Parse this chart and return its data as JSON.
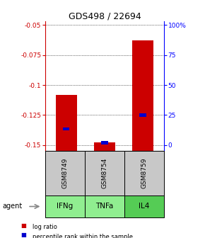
{
  "title": "GDS498 / 22694",
  "samples": [
    "GSM8749",
    "GSM8754",
    "GSM8759"
  ],
  "agents": [
    "IFNg",
    "TNFa",
    "IL4"
  ],
  "log_ratios": [
    -0.108,
    -0.148,
    -0.063
  ],
  "pct_rank_values": [
    13.5,
    2.0,
    25.0
  ],
  "ylim_left": [
    -0.155,
    -0.047
  ],
  "yticks_left": [
    -0.05,
    -0.075,
    -0.1,
    -0.125,
    -0.15
  ],
  "yticks_right": [
    0,
    25,
    50,
    75,
    100
  ],
  "bar_width": 0.55,
  "red_color": "#cc0000",
  "blue_color": "#0000cc",
  "gray_box_color": "#c8c8c8",
  "green_box_color": "#90ee90",
  "green_box_color2": "#55cc55"
}
